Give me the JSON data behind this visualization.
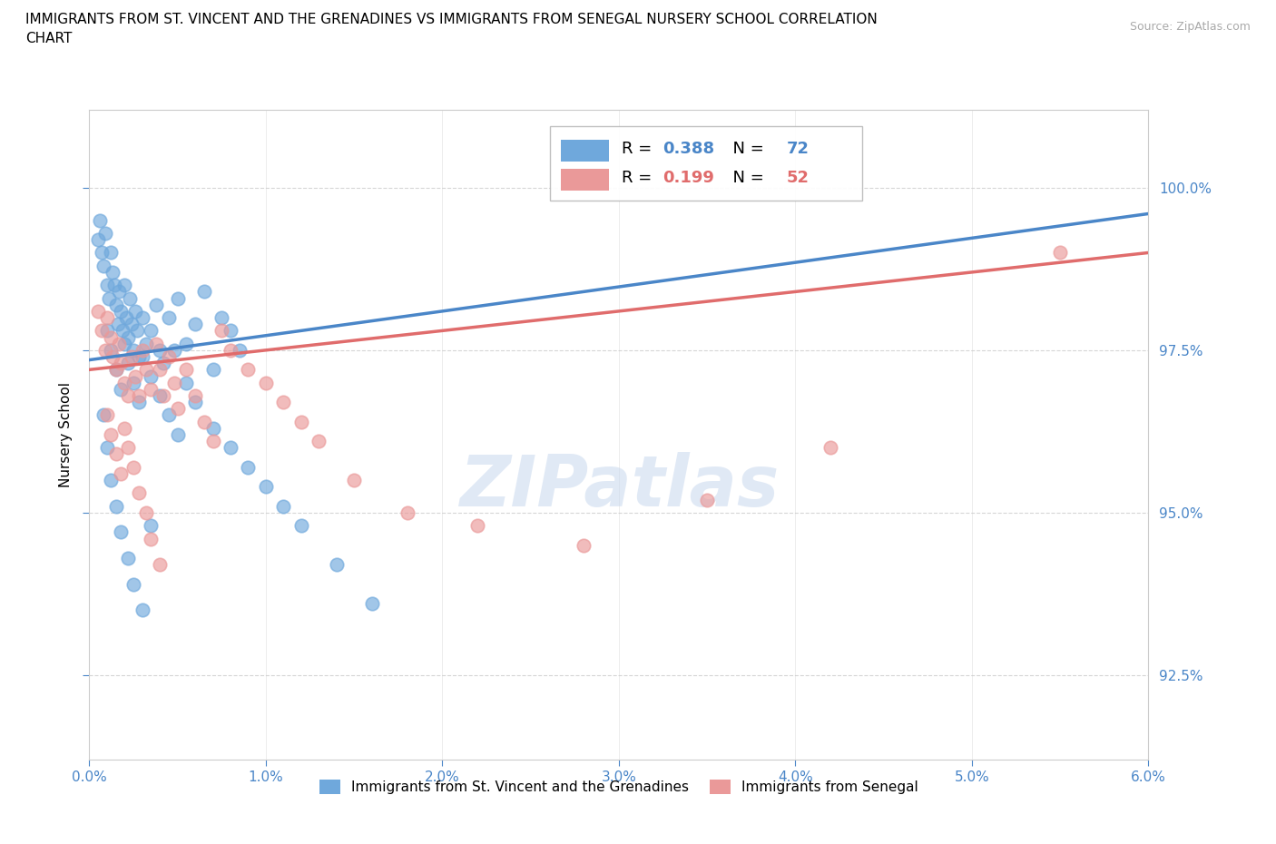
{
  "title_line1": "IMMIGRANTS FROM ST. VINCENT AND THE GRENADINES VS IMMIGRANTS FROM SENEGAL NURSERY SCHOOL CORRELATION",
  "title_line2": "CHART",
  "source_text": "Source: ZipAtlas.com",
  "xlabel_ticks": [
    "0.0%",
    "1.0%",
    "2.0%",
    "3.0%",
    "4.0%",
    "5.0%",
    "6.0%"
  ],
  "xlabel_vals": [
    0.0,
    1.0,
    2.0,
    3.0,
    4.0,
    5.0,
    6.0
  ],
  "ylabel_ticks": [
    "92.5%",
    "95.0%",
    "97.5%",
    "100.0%"
  ],
  "ylabel_vals": [
    92.5,
    95.0,
    97.5,
    100.0
  ],
  "xlim": [
    0.0,
    6.0
  ],
  "ylim": [
    91.2,
    101.2
  ],
  "color_blue": "#6fa8dc",
  "color_pink": "#ea9999",
  "color_blue_line": "#4a86c8",
  "color_pink_line": "#e06c6c",
  "legend_R1": "0.388",
  "legend_N1": "72",
  "legend_R2": "0.199",
  "legend_N2": "52",
  "legend_label1": "Immigrants from St. Vincent and the Grenadines",
  "legend_label2": "Immigrants from Senegal",
  "watermark": "ZIPatlas",
  "blue_x": [
    0.05,
    0.06,
    0.07,
    0.08,
    0.09,
    0.1,
    0.11,
    0.12,
    0.13,
    0.14,
    0.15,
    0.16,
    0.17,
    0.18,
    0.19,
    0.2,
    0.21,
    0.22,
    0.23,
    0.24,
    0.25,
    0.26,
    0.27,
    0.28,
    0.3,
    0.32,
    0.35,
    0.38,
    0.4,
    0.42,
    0.45,
    0.48,
    0.5,
    0.55,
    0.6,
    0.65,
    0.7,
    0.75,
    0.8,
    0.85,
    0.1,
    0.12,
    0.15,
    0.18,
    0.2,
    0.22,
    0.25,
    0.28,
    0.3,
    0.35,
    0.4,
    0.45,
    0.5,
    0.55,
    0.6,
    0.7,
    0.8,
    0.9,
    1.0,
    1.1,
    1.2,
    1.4,
    1.6,
    0.08,
    0.1,
    0.12,
    0.15,
    0.18,
    0.22,
    0.25,
    0.3,
    0.35
  ],
  "blue_y": [
    99.2,
    99.5,
    99.0,
    98.8,
    99.3,
    98.5,
    98.3,
    99.0,
    98.7,
    98.5,
    98.2,
    97.9,
    98.4,
    98.1,
    97.8,
    98.5,
    98.0,
    97.7,
    98.3,
    97.9,
    97.5,
    98.1,
    97.8,
    97.4,
    98.0,
    97.6,
    97.8,
    98.2,
    97.5,
    97.3,
    98.0,
    97.5,
    98.3,
    97.6,
    97.9,
    98.4,
    97.2,
    98.0,
    97.8,
    97.5,
    97.8,
    97.5,
    97.2,
    96.9,
    97.6,
    97.3,
    97.0,
    96.7,
    97.4,
    97.1,
    96.8,
    96.5,
    96.2,
    97.0,
    96.7,
    96.3,
    96.0,
    95.7,
    95.4,
    95.1,
    94.8,
    94.2,
    93.6,
    96.5,
    96.0,
    95.5,
    95.1,
    94.7,
    94.3,
    93.9,
    93.5,
    94.8
  ],
  "pink_x": [
    0.05,
    0.07,
    0.09,
    0.1,
    0.12,
    0.13,
    0.15,
    0.17,
    0.18,
    0.2,
    0.22,
    0.24,
    0.26,
    0.28,
    0.3,
    0.32,
    0.35,
    0.38,
    0.4,
    0.42,
    0.45,
    0.48,
    0.5,
    0.55,
    0.6,
    0.65,
    0.7,
    0.75,
    0.8,
    0.9,
    1.0,
    1.1,
    1.2,
    1.3,
    1.5,
    1.8,
    2.2,
    2.8,
    3.5,
    4.2,
    0.1,
    0.12,
    0.15,
    0.18,
    0.2,
    0.22,
    0.25,
    0.28,
    0.32,
    0.35,
    0.4,
    5.5
  ],
  "pink_y": [
    98.1,
    97.8,
    97.5,
    98.0,
    97.7,
    97.4,
    97.2,
    97.6,
    97.3,
    97.0,
    96.8,
    97.4,
    97.1,
    96.8,
    97.5,
    97.2,
    96.9,
    97.6,
    97.2,
    96.8,
    97.4,
    97.0,
    96.6,
    97.2,
    96.8,
    96.4,
    96.1,
    97.8,
    97.5,
    97.2,
    97.0,
    96.7,
    96.4,
    96.1,
    95.5,
    95.0,
    94.8,
    94.5,
    95.2,
    96.0,
    96.5,
    96.2,
    95.9,
    95.6,
    96.3,
    96.0,
    95.7,
    95.3,
    95.0,
    94.6,
    94.2,
    99.0
  ],
  "blue_trend_x": [
    0.0,
    6.0
  ],
  "blue_trend_y": [
    97.35,
    99.6
  ],
  "pink_trend_x": [
    0.0,
    6.0
  ],
  "pink_trend_y": [
    97.2,
    99.0
  ]
}
